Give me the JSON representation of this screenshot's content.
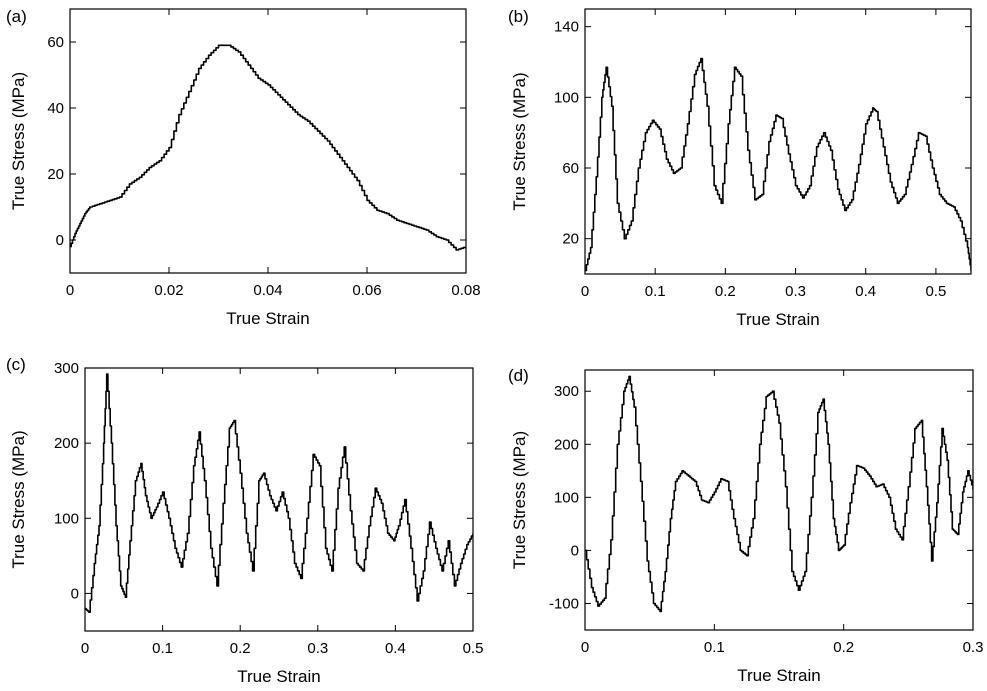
{
  "chart_data": [
    {
      "panel": "(a)",
      "type": "line",
      "xlabel": "True Strain",
      "ylabel": "True Stress (MPa)",
      "xlim": [
        0,
        0.08
      ],
      "ylim": [
        -10,
        70
      ],
      "xticks": [
        0,
        0.02,
        0.04,
        0.06,
        0.08
      ],
      "xtick_labels": [
        "0",
        "0.02",
        "0.04",
        "0.06",
        "0.08"
      ],
      "yticks": [
        0,
        20,
        40,
        60
      ],
      "ytick_labels": [
        "0",
        "20",
        "40",
        "60"
      ],
      "grid": false,
      "series": [
        {
          "x": [
            0,
            0.001,
            0.002,
            0.003,
            0.004,
            0.006,
            0.008,
            0.01,
            0.012,
            0.014,
            0.016,
            0.018,
            0.02,
            0.022,
            0.024,
            0.026,
            0.028,
            0.03,
            0.032,
            0.034,
            0.036,
            0.038,
            0.04,
            0.042,
            0.044,
            0.046,
            0.048,
            0.05,
            0.052,
            0.054,
            0.056,
            0.058,
            0.06,
            0.062,
            0.064,
            0.066,
            0.068,
            0.07,
            0.072,
            0.074,
            0.076,
            0.078,
            0.08
          ],
          "y": [
            -2,
            2,
            5,
            8,
            10,
            11,
            12,
            13,
            17,
            19,
            22,
            24,
            28,
            38,
            45,
            52,
            56,
            59,
            59,
            57,
            53,
            49,
            47,
            44,
            41,
            38,
            36,
            33,
            30,
            26,
            22,
            18,
            12,
            9,
            8,
            6,
            5,
            4,
            3,
            1,
            0,
            -3,
            -2
          ]
        }
      ]
    },
    {
      "panel": "(b)",
      "type": "line",
      "xlabel": "True Strain",
      "ylabel": "True Stress (MPa)",
      "xlim": [
        0,
        0.55
      ],
      "ylim": [
        0,
        150
      ],
      "xticks": [
        0,
        0.1,
        0.2,
        0.3,
        0.4,
        0.5
      ],
      "xtick_labels": [
        "0",
        "0.1",
        "0.2",
        "0.3",
        "0.4",
        "0.5"
      ],
      "yticks": [
        20,
        60,
        100,
        140
      ],
      "ytick_labels": [
        "20",
        "60",
        "100",
        "140"
      ],
      "grid": false,
      "series": [
        {
          "x": [
            0,
            0.008,
            0.016,
            0.024,
            0.03,
            0.038,
            0.046,
            0.056,
            0.066,
            0.076,
            0.086,
            0.096,
            0.106,
            0.116,
            0.126,
            0.136,
            0.146,
            0.156,
            0.165,
            0.174,
            0.184,
            0.194,
            0.204,
            0.213,
            0.222,
            0.232,
            0.242,
            0.252,
            0.262,
            0.272,
            0.28,
            0.29,
            0.3,
            0.31,
            0.32,
            0.33,
            0.34,
            0.35,
            0.36,
            0.37,
            0.38,
            0.39,
            0.4,
            0.41,
            0.415,
            0.425,
            0.435,
            0.445,
            0.455,
            0.465,
            0.475,
            0.485,
            0.495,
            0.505,
            0.515,
            0.525,
            0.535,
            0.545,
            0.55
          ],
          "y": [
            2,
            15,
            55,
            100,
            117,
            95,
            40,
            20,
            30,
            60,
            80,
            87,
            82,
            65,
            57,
            60,
            85,
            113,
            122,
            95,
            50,
            40,
            85,
            117,
            112,
            70,
            42,
            45,
            75,
            90,
            88,
            68,
            50,
            43,
            50,
            72,
            80,
            70,
            48,
            36,
            42,
            62,
            85,
            94,
            92,
            72,
            52,
            40,
            45,
            62,
            80,
            78,
            60,
            45,
            40,
            38,
            30,
            15,
            2
          ]
        }
      ]
    },
    {
      "panel": "(c)",
      "type": "line",
      "xlabel": "True Strain",
      "ylabel": "True Stress (MPa)",
      "xlim": [
        0,
        0.5
      ],
      "ylim": [
        -50,
        300
      ],
      "xticks": [
        0,
        0.1,
        0.2,
        0.3,
        0.4,
        0.5
      ],
      "xtick_labels": [
        "0",
        "0.1",
        "0.2",
        "0.3",
        "0.4",
        "0.5"
      ],
      "yticks": [
        0,
        100,
        200,
        300
      ],
      "ytick_labels": [
        "0",
        "100",
        "200",
        "300"
      ],
      "grid": false,
      "series": [
        {
          "x": [
            0,
            0.005,
            0.012,
            0.018,
            0.024,
            0.028,
            0.034,
            0.04,
            0.046,
            0.052,
            0.058,
            0.065,
            0.072,
            0.078,
            0.085,
            0.092,
            0.1,
            0.108,
            0.116,
            0.124,
            0.132,
            0.14,
            0.147,
            0.154,
            0.162,
            0.17,
            0.178,
            0.186,
            0.192,
            0.2,
            0.208,
            0.216,
            0.224,
            0.23,
            0.238,
            0.246,
            0.254,
            0.262,
            0.27,
            0.278,
            0.286,
            0.294,
            0.302,
            0.31,
            0.318,
            0.326,
            0.334,
            0.342,
            0.35,
            0.358,
            0.366,
            0.374,
            0.382,
            0.39,
            0.398,
            0.404,
            0.412,
            0.42,
            0.428,
            0.436,
            0.444,
            0.452,
            0.46,
            0.468,
            0.476,
            0.484,
            0.492,
            0.5
          ],
          "y": [
            -20,
            -25,
            40,
            90,
            200,
            292,
            200,
            90,
            10,
            -5,
            70,
            150,
            173,
            130,
            100,
            115,
            135,
            100,
            60,
            35,
            80,
            170,
            215,
            150,
            60,
            10,
            120,
            220,
            230,
            160,
            80,
            30,
            150,
            160,
            130,
            110,
            135,
            100,
            40,
            20,
            100,
            185,
            170,
            60,
            30,
            140,
            195,
            110,
            40,
            30,
            90,
            140,
            120,
            80,
            70,
            90,
            125,
            60,
            -10,
            30,
            95,
            60,
            30,
            70,
            10,
            40,
            65,
            80
          ]
        }
      ]
    },
    {
      "panel": "(d)",
      "type": "line",
      "xlabel": "True Strain",
      "ylabel": "True Stress (MPa)",
      "xlim": [
        0,
        0.3
      ],
      "ylim": [
        -150,
        340
      ],
      "xticks": [
        0,
        0.1,
        0.2,
        0.3
      ],
      "xtick_labels": [
        "0",
        "0.1",
        "0.2",
        "0.3"
      ],
      "yticks": [
        -100,
        0,
        100,
        200,
        300
      ],
      "ytick_labels": [
        "-100",
        "0",
        "100",
        "200",
        "300"
      ],
      "grid": false,
      "series": [
        {
          "x": [
            0,
            0.005,
            0.01,
            0.015,
            0.02,
            0.025,
            0.03,
            0.034,
            0.038,
            0.043,
            0.048,
            0.053,
            0.058,
            0.062,
            0.066,
            0.07,
            0.075,
            0.08,
            0.085,
            0.09,
            0.095,
            0.1,
            0.105,
            0.11,
            0.115,
            0.12,
            0.125,
            0.13,
            0.135,
            0.14,
            0.145,
            0.15,
            0.155,
            0.16,
            0.165,
            0.17,
            0.175,
            0.18,
            0.184,
            0.188,
            0.192,
            0.196,
            0.2,
            0.205,
            0.21,
            0.215,
            0.22,
            0.225,
            0.23,
            0.235,
            0.24,
            0.245,
            0.25,
            0.255,
            0.26,
            0.264,
            0.268,
            0.272,
            0.276,
            0.28,
            0.284,
            0.288,
            0.292,
            0.296,
            0.3
          ],
          "y": [
            0,
            -70,
            -105,
            -90,
            20,
            200,
            300,
            328,
            270,
            130,
            -20,
            -100,
            -115,
            -40,
            60,
            130,
            150,
            140,
            130,
            95,
            90,
            110,
            135,
            130,
            60,
            0,
            -10,
            60,
            200,
            290,
            300,
            240,
            120,
            -40,
            -75,
            -40,
            100,
            260,
            285,
            200,
            60,
            0,
            10,
            90,
            160,
            155,
            140,
            120,
            125,
            100,
            40,
            20,
            120,
            230,
            245,
            120,
            -20,
            90,
            230,
            170,
            40,
            30,
            110,
            150,
            115
          ]
        }
      ]
    }
  ]
}
